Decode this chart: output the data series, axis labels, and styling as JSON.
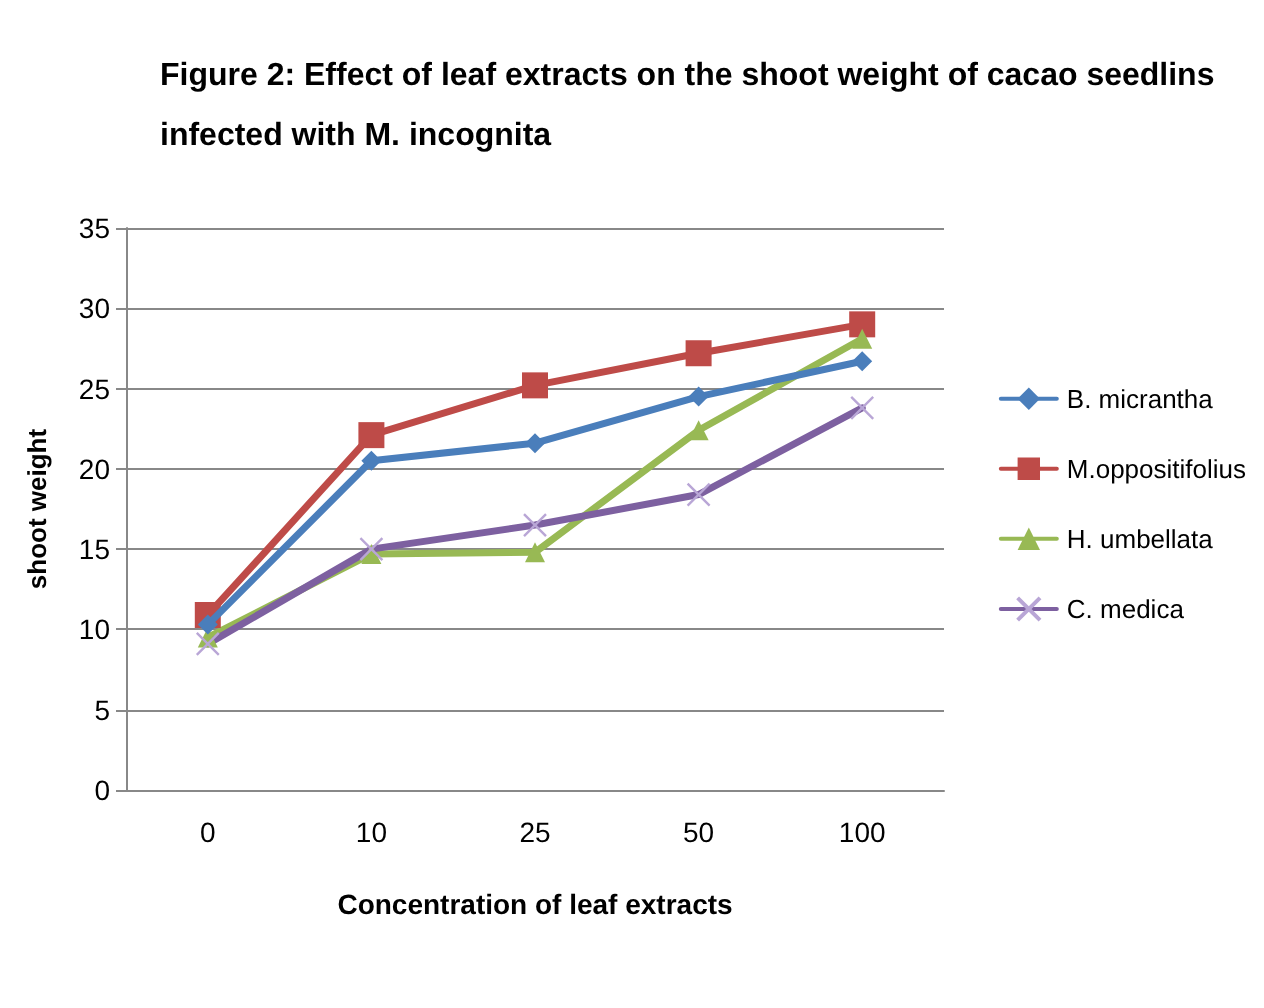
{
  "chart_data": {
    "type": "line",
    "title": "Figure 2: Effect of leaf extracts on the shoot weight of cacao seedlins\ninfected with M. incognita",
    "xlabel": "Concentration of leaf extracts",
    "ylabel": "shoot weight",
    "categories": [
      "0",
      "10",
      "25",
      "50",
      "100"
    ],
    "ylim": [
      0,
      35
    ],
    "yticks": [
      0,
      5,
      10,
      15,
      20,
      25,
      30,
      35
    ],
    "grid": "y",
    "legend": "right",
    "series": [
      {
        "name": "B. micrantha",
        "color": "#4a7ebb",
        "marker": "diamond",
        "values": [
          10.3,
          20.5,
          21.6,
          24.5,
          26.7
        ]
      },
      {
        "name": "M.oppositifolius",
        "color": "#be4b48",
        "marker": "square",
        "values": [
          10.9,
          22.1,
          25.2,
          27.2,
          29.0
        ]
      },
      {
        "name": "H. umbellata",
        "color": "#98b954",
        "marker": "triangle",
        "values": [
          9.5,
          14.7,
          14.8,
          22.4,
          28.1
        ]
      },
      {
        "name": "C. medica",
        "color": "#7d60a0",
        "marker": "cross",
        "values": [
          9.1,
          15.0,
          16.5,
          18.4,
          23.8
        ]
      }
    ]
  }
}
